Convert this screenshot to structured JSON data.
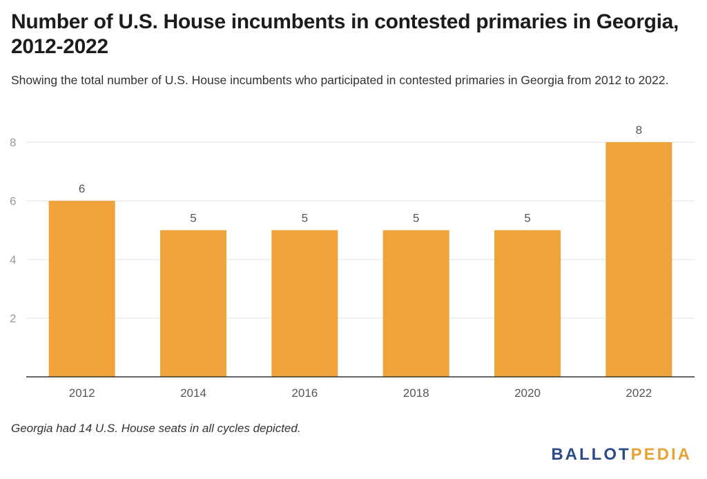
{
  "chart_data": {
    "type": "bar",
    "title": "Number of U.S. House incumbents in contested primaries in Georgia, 2012-2022",
    "subtitle": "Showing the total number of U.S. House incumbents who participated in contested primaries in Georgia from 2012 to 2022.",
    "categories": [
      "2012",
      "2014",
      "2016",
      "2018",
      "2020",
      "2022"
    ],
    "values": [
      6,
      5,
      5,
      5,
      5,
      8
    ],
    "data_labels": [
      "6",
      "5",
      "5",
      "5",
      "5",
      "8"
    ],
    "y_ticks": [
      "2",
      "4",
      "6",
      "8"
    ],
    "ylim": [
      0,
      8.5
    ],
    "grid": true,
    "bar_color": "#f0a33a",
    "xlabel": "",
    "ylabel": ""
  },
  "note": "Georgia had 14 U.S. House seats in all cycles depicted.",
  "logo": {
    "part_a": "BALLOT",
    "part_b": "PEDIA"
  }
}
